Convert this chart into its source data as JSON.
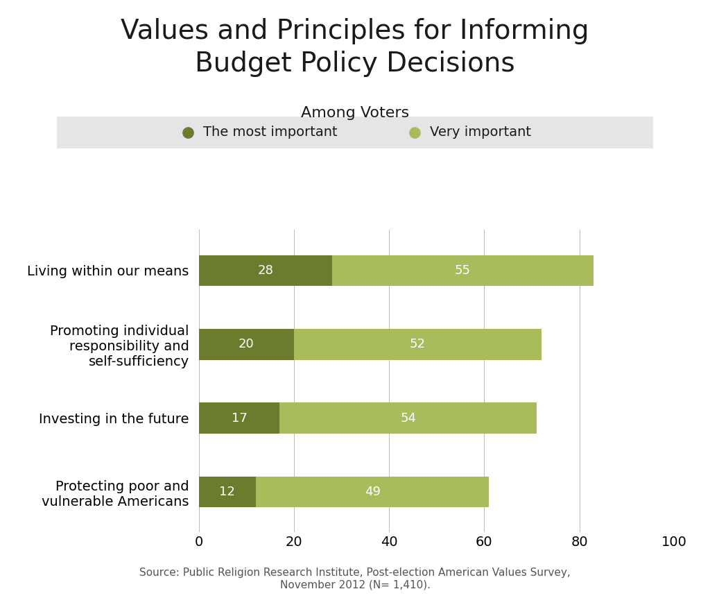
{
  "title": "Values and Principles for Informing\nBudget Policy Decisions",
  "subtitle": "Among Voters",
  "categories": [
    "Living within our means",
    "Promoting individual\nresponsibility and\nself-sufficiency",
    "Investing in the future",
    "Protecting poor and\nvulnerable Americans"
  ],
  "most_important": [
    28,
    20,
    17,
    12
  ],
  "very_important": [
    55,
    52,
    54,
    49
  ],
  "color_most": "#6b7c2d",
  "color_very": "#a9bc5c",
  "legend_labels": [
    "The most important",
    "Very important"
  ],
  "xlabel_ticks": [
    0,
    20,
    40,
    60,
    80,
    100
  ],
  "xlim": [
    0,
    100
  ],
  "source_text": "Source: Public Religion Research Institute, Post-election American Values Survey,\nNovember 2012 (N= 1,410).",
  "background_color": "#ffffff",
  "legend_bg": "#e5e5e5",
  "grid_color": "#bbbbbb",
  "bar_height": 0.42,
  "title_fontsize": 28,
  "subtitle_fontsize": 16,
  "label_fontsize": 14,
  "tick_fontsize": 14,
  "value_fontsize": 13,
  "source_fontsize": 11
}
